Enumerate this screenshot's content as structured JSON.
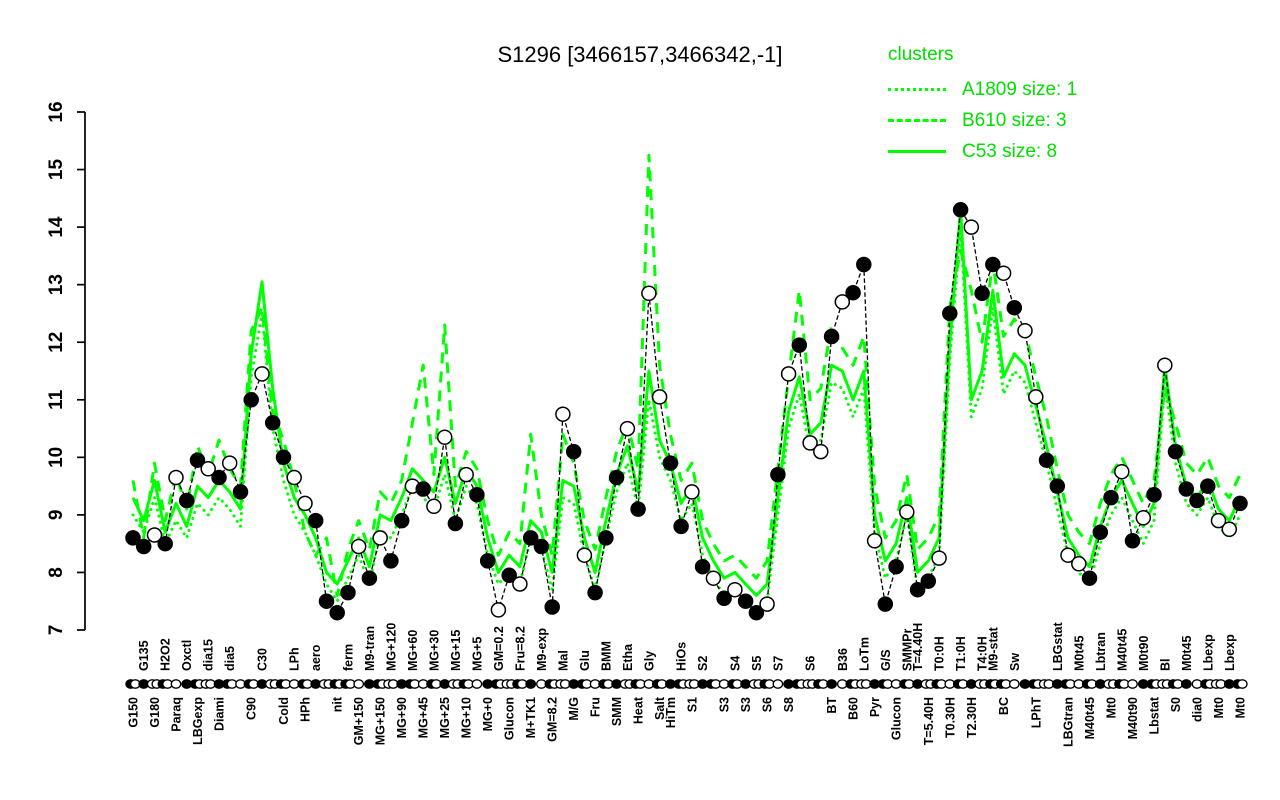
{
  "title": "S1296 [3466157,3466342,-1]",
  "colors": {
    "cluster_line": "#00FF00",
    "cluster_text": "#00DF00",
    "profile": "#000000",
    "background": "#FFFFFF"
  },
  "legend": {
    "title": "clusters",
    "entries": [
      {
        "label": "A1809 size: 1",
        "style": "dotted"
      },
      {
        "label": "B610 size: 3",
        "style": "dashed"
      },
      {
        "label": "C53 size: 8",
        "style": "solid"
      }
    ]
  },
  "chart_data": {
    "type": "line",
    "title": "S1296 [3466157,3466342,-1]",
    "ylim": [
      7,
      16
    ],
    "yticks": [
      7,
      8,
      9,
      10,
      11,
      12,
      13,
      14,
      15,
      16
    ],
    "grid": false,
    "legend_position": "top-right",
    "x_label_rows": "two staggered rows of 90-degree rotated condition labels",
    "labels": [
      "G150",
      "G135",
      "G180",
      "H2O2",
      "Paraq",
      "Oxctl",
      "LBGexp",
      "dia15",
      "Diami",
      "dia5",
      "",
      "C90",
      "C30",
      "",
      "Cold",
      "LPh",
      "HPh",
      "aero",
      "",
      "nit",
      "ferm",
      "GM+150",
      "M9-tran",
      "MG+150",
      "MG+120",
      "MG+90",
      "MG+60",
      "MG+45",
      "MG+30",
      "MG+25",
      "MG+15",
      "MG+10",
      "MG+5",
      "MG+0",
      "GM=0.2",
      "Glucon",
      "Fru=8.2",
      "M+TK1",
      "M9-exp",
      "GM=8.2",
      "Mal",
      "M/G",
      "Glu",
      "Fru",
      "BMM",
      "SMM",
      "Etha",
      "Heat",
      "Gly",
      "Salt",
      "HiTm",
      "HiOs",
      "S1",
      "S2",
      "",
      "S3",
      "S4",
      "S3",
      "S5",
      "S6",
      "S7",
      "S8",
      "",
      "S6",
      "",
      "BT",
      "B36",
      "B60",
      "LoTm",
      "Pyr",
      "G/S",
      "Glucon",
      "SMMPr",
      "T=4.40H",
      "T=5.40H",
      "T0:0H",
      "T0.30H",
      "T1:0H",
      "T2.30H",
      "T4:0H",
      "M9-stat",
      "BC",
      "Sw",
      "",
      "LPhT",
      "",
      "LBGstat",
      "LBGtran",
      "M0t45",
      "M40t45",
      "Lbtran",
      "Mt0",
      "M40t45",
      "M40t90",
      "M0t90",
      "Lbstat",
      "Bl",
      "S0",
      "M0t45",
      "dia0",
      "Lbexp",
      "Mt0",
      "Lbexp",
      "Mt0"
    ],
    "label_rows": [
      "b",
      "t",
      "b",
      "t",
      "b",
      "t",
      "b",
      "t",
      "b",
      "t",
      "t",
      "b",
      "t",
      "b",
      "b",
      "t",
      "b",
      "t",
      "t",
      "b",
      "t",
      "b",
      "t",
      "b",
      "t",
      "b",
      "t",
      "b",
      "t",
      "b",
      "t",
      "b",
      "t",
      "b",
      "t",
      "b",
      "t",
      "b",
      "t",
      "b",
      "t",
      "b",
      "t",
      "b",
      "t",
      "b",
      "t",
      "b",
      "t",
      "b",
      "b",
      "t",
      "b",
      "t",
      "t",
      "b",
      "t",
      "b",
      "t",
      "b",
      "t",
      "b",
      "b",
      "t",
      "t",
      "b",
      "t",
      "b",
      "t",
      "b",
      "t",
      "b",
      "t",
      "t",
      "b",
      "t",
      "b",
      "t",
      "b",
      "t",
      "t",
      "b",
      "t",
      "b",
      "b",
      "t",
      "t",
      "b",
      "t",
      "b",
      "t",
      "b",
      "t",
      "b",
      "t",
      "b",
      "t",
      "b",
      "t",
      "b",
      "t",
      "b",
      "t",
      "b"
    ],
    "series": [
      {
        "name": "A1809",
        "size": 1,
        "style": "dotted",
        "color": "#00FF00",
        "values": [
          9.0,
          8.7,
          9.3,
          8.5,
          8.9,
          8.6,
          9.2,
          9.0,
          9.3,
          9.1,
          8.8,
          11.4,
          12.5,
          10.5,
          9.6,
          9.0,
          8.7,
          8.3,
          7.8,
          7.5,
          7.9,
          8.3,
          7.8,
          8.7,
          8.6,
          9.0,
          9.5,
          9.3,
          9.1,
          9.7,
          8.9,
          9.5,
          9.2,
          8.3,
          7.8,
          8.0,
          7.8,
          8.6,
          8.4,
          7.7,
          9.3,
          9.2,
          8.3,
          7.7,
          8.6,
          9.4,
          9.9,
          9.1,
          11.0,
          10.0,
          9.6,
          8.9,
          9.2,
          8.3,
          7.9,
          7.6,
          7.7,
          7.5,
          7.3,
          7.5,
          9.0,
          10.5,
          11.1,
          10.1,
          10.3,
          11.3,
          11.2,
          10.7,
          11.2,
          8.7,
          7.9,
          8.2,
          9.0,
          7.7,
          7.9,
          8.3,
          11.7,
          14.0,
          10.7,
          11.2,
          12.6,
          11.1,
          11.5,
          11.3,
          10.6,
          9.9,
          9.1,
          8.3,
          8.0,
          7.8,
          8.5,
          9.0,
          9.3,
          8.9,
          8.5,
          8.9,
          11.3,
          9.9,
          9.2,
          9.0,
          9.3,
          8.8,
          8.6,
          9.0
        ]
      },
      {
        "name": "B610",
        "size": 3,
        "style": "dashed",
        "color": "#00FF00",
        "values": [
          9.6,
          8.6,
          9.9,
          8.9,
          9.7,
          9.1,
          10.2,
          9.7,
          10.3,
          9.8,
          9.5,
          12.2,
          12.6,
          10.8,
          10.3,
          9.6,
          8.7,
          8.3,
          8.6,
          7.6,
          8.4,
          8.9,
          8.4,
          9.4,
          9.2,
          9.6,
          10.6,
          11.6,
          9.7,
          12.3,
          9.5,
          10.1,
          9.8,
          8.9,
          8.3,
          8.7,
          8.5,
          10.4,
          9.0,
          8.3,
          10.4,
          9.9,
          8.9,
          8.4,
          9.3,
          10.1,
          10.6,
          9.8,
          15.25,
          11.6,
          10.4,
          9.6,
          9.9,
          8.9,
          8.5,
          8.2,
          8.3,
          8.1,
          7.9,
          8.2,
          9.8,
          11.4,
          12.9,
          11.0,
          11.2,
          12.3,
          11.9,
          11.6,
          12.1,
          9.5,
          8.6,
          8.9,
          9.7,
          8.4,
          8.6,
          9.0,
          12.6,
          13.6,
          12.9,
          12.0,
          13.4,
          12.1,
          12.4,
          12.2,
          11.4,
          10.7,
          9.8,
          9.0,
          8.7,
          8.5,
          9.2,
          9.7,
          10.0,
          9.6,
          9.2,
          9.6,
          11.2,
          10.6,
          9.9,
          9.7,
          10.0,
          9.5,
          9.3,
          9.7
        ]
      },
      {
        "name": "C53",
        "size": 8,
        "style": "solid",
        "color": "#00FF00",
        "values": [
          9.3,
          8.9,
          9.6,
          8.7,
          9.2,
          8.8,
          9.5,
          9.3,
          9.6,
          9.4,
          9.1,
          11.8,
          13.05,
          11.2,
          9.9,
          9.3,
          9.0,
          8.6,
          8.0,
          7.8,
          8.2,
          8.6,
          8.1,
          9.0,
          8.9,
          9.3,
          9.8,
          9.6,
          9.4,
          10.0,
          9.2,
          9.8,
          9.5,
          8.6,
          8.0,
          8.3,
          8.1,
          8.9,
          8.7,
          8.0,
          9.6,
          9.5,
          8.6,
          8.0,
          8.9,
          9.7,
          10.2,
          9.4,
          11.5,
          10.3,
          9.9,
          9.2,
          9.5,
          8.6,
          8.2,
          7.9,
          8.0,
          7.8,
          7.6,
          7.8,
          9.3,
          10.8,
          11.4,
          10.4,
          10.6,
          11.6,
          11.5,
          11.0,
          11.5,
          9.0,
          8.2,
          8.5,
          9.3,
          8.0,
          8.2,
          8.6,
          12.0,
          14.3,
          11.0,
          11.5,
          12.9,
          11.4,
          11.8,
          11.6,
          10.9,
          10.2,
          9.4,
          8.6,
          8.3,
          8.1,
          8.8,
          9.3,
          9.6,
          9.2,
          8.8,
          9.2,
          11.6,
          10.2,
          9.5,
          9.3,
          9.6,
          9.1,
          8.9,
          9.3
        ]
      },
      {
        "name": "S1296 profile",
        "style": "points",
        "color": "#000000",
        "values": [
          8.6,
          8.45,
          8.65,
          8.5,
          9.65,
          9.25,
          9.95,
          9.8,
          9.65,
          9.9,
          9.4,
          11.0,
          11.45,
          10.6,
          10.0,
          9.65,
          9.2,
          8.9,
          7.5,
          7.3,
          7.65,
          8.45,
          7.9,
          8.6,
          8.2,
          8.9,
          9.5,
          9.45,
          9.15,
          10.35,
          8.85,
          9.7,
          9.35,
          8.2,
          7.35,
          7.95,
          7.8,
          8.6,
          8.45,
          7.4,
          10.75,
          10.1,
          8.3,
          7.65,
          8.6,
          9.65,
          10.5,
          9.1,
          12.85,
          11.05,
          9.9,
          8.8,
          9.4,
          8.1,
          7.9,
          7.55,
          7.7,
          7.5,
          7.3,
          7.45,
          9.7,
          11.45,
          11.95,
          10.25,
          10.1,
          12.1,
          12.7,
          12.86,
          13.35,
          8.55,
          7.45,
          8.1,
          9.05,
          7.7,
          7.85,
          8.25,
          12.5,
          14.3,
          14.0,
          12.85,
          13.35,
          13.2,
          12.6,
          12.2,
          11.05,
          9.95,
          9.5,
          8.3,
          8.15,
          7.9,
          8.7,
          9.3,
          9.75,
          8.55,
          8.95,
          9.35,
          11.6,
          10.1,
          9.45,
          9.25,
          9.5,
          8.9,
          8.75,
          9.2
        ],
        "markers": [
          "f",
          "f",
          "o",
          "f",
          "o",
          "f",
          "f",
          "o",
          "f",
          "o",
          "f",
          "f",
          "o",
          "f",
          "f",
          "o",
          "o",
          "f",
          "f",
          "f",
          "f",
          "o",
          "f",
          "o",
          "f",
          "f",
          "o",
          "f",
          "o",
          "o",
          "f",
          "o",
          "f",
          "f",
          "o",
          "f",
          "o",
          "f",
          "f",
          "f",
          "o",
          "f",
          "o",
          "f",
          "f",
          "f",
          "o",
          "f",
          "o",
          "o",
          "f",
          "f",
          "o",
          "f",
          "o",
          "f",
          "o",
          "f",
          "f",
          "o",
          "f",
          "o",
          "f",
          "o",
          "o",
          "f",
          "o",
          "f",
          "f",
          "o",
          "f",
          "f",
          "o",
          "f",
          "f",
          "o",
          "f",
          "f",
          "o",
          "f",
          "f",
          "o",
          "f",
          "o",
          "o",
          "f",
          "f",
          "o",
          "o",
          "f",
          "f",
          "f",
          "o",
          "f",
          "o",
          "f",
          "o",
          "f",
          "f",
          "f",
          "f",
          "o",
          "o",
          "f"
        ]
      }
    ],
    "axis_marker_groups": [
      "fo",
      "f",
      "oo",
      "fo",
      "o",
      "f",
      "fo",
      "oo",
      "f",
      "fo",
      "o",
      "fo",
      "f",
      "oo",
      "fo",
      "o",
      "fo",
      "f",
      "oo",
      "fo",
      "fo",
      "o",
      "f",
      "fo",
      "oo",
      "f",
      "fo",
      "o",
      "fo",
      "f",
      "oo",
      "fo",
      "o",
      "f",
      "fo",
      "oo",
      "fo",
      "f",
      "o",
      "fo",
      "oo",
      "f",
      "fo",
      "o",
      "fo",
      "f",
      "oo",
      "fo",
      "o",
      "fo",
      "f",
      "fo",
      "oo",
      "f",
      "fo",
      "o",
      "fo",
      "f",
      "oo",
      "fo",
      "o",
      "f",
      "fo",
      "oo",
      "fo",
      "f",
      "o",
      "fo",
      "oo",
      "f",
      "fo",
      "o",
      "fo",
      "f",
      "oo",
      "fo",
      "o",
      "fo",
      "f",
      "oo",
      "fo",
      "fo",
      "o",
      "f",
      "fo",
      "oo",
      "f",
      "fo",
      "o",
      "fo",
      "f",
      "oo",
      "fo",
      "o",
      "f",
      "fo",
      "oo",
      "fo",
      "f",
      "o",
      "fo",
      "oo",
      "f",
      "fo"
    ]
  }
}
